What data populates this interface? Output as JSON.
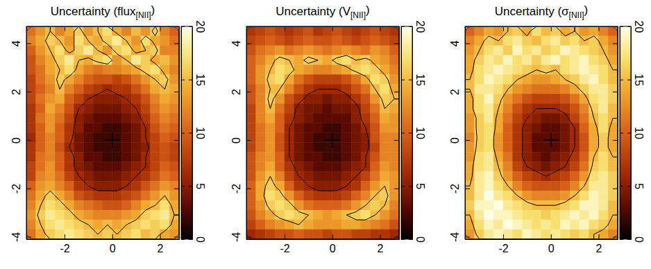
{
  "chart_data": [
    {
      "type": "heatmap",
      "title": {
        "text": "Uncertainty (flux",
        "subscript": "[NII]",
        "end": ")"
      },
      "xlim": [
        -3.6,
        2.8
      ],
      "ylim": [
        -4.1,
        4.7
      ],
      "xticks": [
        -2,
        0,
        2
      ],
      "yticks": [
        -4,
        -2,
        0,
        2,
        4
      ],
      "x": [
        -3.4,
        -3.0,
        -2.6,
        -2.2,
        -1.8,
        -1.4,
        -1.0,
        -0.6,
        -0.2,
        0.2,
        0.6,
        1.0,
        1.4,
        1.8,
        2.2,
        2.6
      ],
      "y": [
        4.5,
        4.1,
        3.7,
        3.3,
        2.9,
        2.5,
        2.1,
        1.7,
        1.3,
        0.9,
        0.5,
        0.1,
        -0.3,
        -0.7,
        -1.1,
        -1.5,
        -1.9,
        -2.3,
        -2.7,
        -3.1,
        -3.5,
        -3.9
      ],
      "values": [
        [
          11,
          13,
          15,
          12,
          14,
          16,
          13,
          15,
          17,
          14,
          12,
          15,
          13,
          16,
          12,
          10
        ],
        [
          12,
          14,
          16,
          15,
          13,
          17,
          15,
          14,
          16,
          18,
          15,
          13,
          17,
          14,
          13,
          11
        ],
        [
          10,
          13,
          15,
          17,
          14,
          16,
          18,
          15,
          13,
          16,
          17,
          14,
          15,
          16,
          12,
          12
        ],
        [
          9,
          12,
          14,
          16,
          18,
          15,
          14,
          16,
          17,
          13,
          15,
          18,
          16,
          14,
          15,
          13
        ],
        [
          9,
          11,
          14,
          15,
          17,
          14,
          12,
          11,
          12,
          12,
          13,
          14,
          16,
          17,
          14,
          12
        ],
        [
          8,
          11,
          13,
          16,
          14,
          12,
          10,
          9,
          9,
          8,
          9,
          11,
          13,
          15,
          16,
          13
        ],
        [
          8,
          10,
          12,
          15,
          12,
          10,
          8,
          7,
          6,
          7,
          7,
          9,
          11,
          14,
          15,
          14
        ],
        [
          8,
          11,
          13,
          14,
          10,
          8,
          6,
          5,
          5,
          5,
          6,
          7,
          9,
          12,
          14,
          13
        ],
        [
          7,
          10,
          14,
          12,
          9,
          6,
          5,
          4,
          4,
          4,
          5,
          6,
          8,
          11,
          13,
          12
        ],
        [
          7,
          11,
          13,
          11,
          8,
          5,
          4,
          3,
          3,
          3,
          4,
          5,
          7,
          10,
          12,
          11
        ],
        [
          7,
          10,
          13,
          10,
          7,
          5,
          3,
          3,
          2,
          2,
          3,
          4,
          6,
          9,
          11,
          10
        ],
        [
          6,
          10,
          12,
          10,
          7,
          4,
          3,
          2,
          2,
          2,
          3,
          4,
          6,
          8,
          10,
          9
        ],
        [
          7,
          10,
          12,
          9,
          6,
          4,
          3,
          2,
          2,
          2,
          3,
          4,
          5,
          8,
          9,
          8
        ],
        [
          7,
          11,
          12,
          10,
          7,
          5,
          3,
          3,
          2,
          2,
          3,
          4,
          6,
          8,
          9,
          8
        ],
        [
          8,
          11,
          13,
          10,
          7,
          5,
          4,
          3,
          3,
          3,
          4,
          5,
          6,
          8,
          10,
          9
        ],
        [
          8,
          12,
          13,
          11,
          8,
          6,
          5,
          4,
          4,
          4,
          5,
          6,
          7,
          9,
          11,
          10
        ],
        [
          10,
          13,
          14,
          12,
          10,
          7,
          6,
          5,
          5,
          5,
          6,
          7,
          9,
          11,
          13,
          12
        ],
        [
          11,
          14,
          16,
          14,
          12,
          9,
          8,
          7,
          7,
          7,
          8,
          9,
          11,
          13,
          15,
          13
        ],
        [
          12,
          15,
          17,
          16,
          14,
          12,
          11,
          10,
          9,
          9,
          10,
          12,
          14,
          15,
          17,
          14
        ],
        [
          13,
          16,
          18,
          17,
          16,
          14,
          13,
          12,
          12,
          12,
          13,
          14,
          16,
          17,
          18,
          15
        ],
        [
          12,
          15,
          17,
          18,
          17,
          16,
          15,
          14,
          15,
          14,
          15,
          16,
          17,
          16,
          17,
          14
        ],
        [
          11,
          14,
          16,
          17,
          18,
          17,
          16,
          15,
          16,
          15,
          16,
          17,
          15,
          16,
          14,
          13
        ]
      ],
      "colorbar": {
        "range": [
          0,
          20
        ],
        "ticks": [
          0,
          5,
          10,
          15,
          20
        ]
      },
      "contour_levels": [
        6,
        15
      ],
      "cross": [
        0,
        0
      ]
    },
    {
      "type": "heatmap",
      "title": {
        "text": "Uncertainty (V",
        "subscript": "[NII]",
        "end": ")"
      },
      "xlim": [
        -3.6,
        2.8
      ],
      "ylim": [
        -4.1,
        4.7
      ],
      "xticks": [
        -2,
        0,
        2
      ],
      "yticks": [
        -4,
        -2,
        0,
        2,
        4
      ],
      "x": [
        -3.4,
        -3.0,
        -2.6,
        -2.2,
        -1.8,
        -1.4,
        -1.0,
        -0.6,
        -0.2,
        0.2,
        0.6,
        1.0,
        1.4,
        1.8,
        2.2,
        2.6
      ],
      "y": [
        4.5,
        4.1,
        3.7,
        3.3,
        2.9,
        2.5,
        2.1,
        1.7,
        1.3,
        0.9,
        0.5,
        0.1,
        -0.3,
        -0.7,
        -1.1,
        -1.5,
        -1.9,
        -2.3,
        -2.7,
        -3.1,
        -3.5,
        -3.9
      ],
      "values": [
        [
          7,
          8,
          9,
          8,
          7,
          8,
          9,
          7,
          8,
          9,
          8,
          7,
          8,
          9,
          8,
          7
        ],
        [
          8,
          9,
          10,
          9,
          8,
          9,
          10,
          9,
          9,
          10,
          9,
          8,
          9,
          10,
          9,
          8
        ],
        [
          9,
          11,
          12,
          13,
          11,
          12,
          13,
          12,
          11,
          12,
          13,
          12,
          11,
          13,
          12,
          10
        ],
        [
          10,
          12,
          14,
          16,
          15,
          14,
          16,
          15,
          14,
          16,
          17,
          15,
          16,
          14,
          13,
          11
        ],
        [
          10,
          13,
          15,
          17,
          16,
          14,
          13,
          12,
          12,
          13,
          14,
          16,
          17,
          16,
          14,
          12
        ],
        [
          10,
          13,
          16,
          17,
          14,
          11,
          9,
          8,
          8,
          8,
          9,
          11,
          14,
          17,
          16,
          13
        ],
        [
          9,
          12,
          15,
          15,
          12,
          9,
          7,
          6,
          6,
          6,
          7,
          9,
          11,
          15,
          17,
          14
        ],
        [
          9,
          12,
          16,
          13,
          9,
          7,
          5,
          5,
          4,
          5,
          5,
          7,
          9,
          13,
          16,
          15
        ],
        [
          8,
          12,
          15,
          11,
          8,
          5,
          4,
          4,
          3,
          4,
          4,
          5,
          8,
          11,
          15,
          14
        ],
        [
          8,
          12,
          14,
          10,
          7,
          5,
          4,
          3,
          3,
          3,
          3,
          5,
          7,
          10,
          14,
          13
        ],
        [
          8,
          11,
          13,
          10,
          6,
          4,
          3,
          3,
          2,
          2,
          3,
          4,
          6,
          9,
          13,
          13
        ],
        [
          8,
          11,
          13,
          9,
          6,
          4,
          3,
          2,
          2,
          2,
          3,
          4,
          5,
          9,
          12,
          12
        ],
        [
          8,
          11,
          13,
          9,
          6,
          4,
          3,
          2,
          2,
          2,
          3,
          4,
          5,
          8,
          12,
          12
        ],
        [
          9,
          12,
          13,
          10,
          6,
          4,
          3,
          3,
          2,
          2,
          3,
          4,
          6,
          9,
          12,
          12
        ],
        [
          9,
          12,
          14,
          10,
          7,
          5,
          4,
          3,
          3,
          3,
          4,
          5,
          6,
          10,
          13,
          12
        ],
        [
          9,
          13,
          15,
          12,
          8,
          6,
          5,
          4,
          4,
          4,
          5,
          6,
          8,
          11,
          14,
          13
        ],
        [
          10,
          14,
          16,
          14,
          10,
          7,
          6,
          5,
          5,
          5,
          6,
          7,
          10,
          13,
          15,
          13
        ],
        [
          10,
          14,
          17,
          16,
          13,
          10,
          8,
          7,
          7,
          7,
          8,
          10,
          12,
          15,
          16,
          13
        ],
        [
          10,
          13,
          16,
          17,
          16,
          13,
          11,
          10,
          10,
          10,
          11,
          13,
          15,
          16,
          15,
          12
        ],
        [
          9,
          12,
          14,
          16,
          17,
          16,
          15,
          14,
          13,
          14,
          15,
          16,
          17,
          15,
          13,
          11
        ],
        [
          8,
          10,
          12,
          13,
          14,
          15,
          14,
          13,
          13,
          13,
          14,
          14,
          13,
          12,
          11,
          9
        ],
        [
          6,
          7,
          8,
          9,
          9,
          10,
          9,
          9,
          8,
          9,
          9,
          8,
          8,
          7,
          7,
          6
        ]
      ],
      "colorbar": {
        "range": [
          0,
          20
        ],
        "ticks": [
          0,
          5,
          10,
          15,
          20
        ]
      },
      "contour_levels": [
        6,
        15
      ],
      "cross": [
        0,
        0
      ]
    },
    {
      "type": "heatmap",
      "title": {
        "text": "Uncertainty (σ",
        "subscript": "[NII]",
        "end": ")"
      },
      "xlim": [
        -3.6,
        2.8
      ],
      "ylim": [
        -4.1,
        4.7
      ],
      "xticks": [
        -2,
        0,
        2
      ],
      "yticks": [
        -4,
        -2,
        0,
        2,
        4
      ],
      "x": [
        -3.4,
        -3.0,
        -2.6,
        -2.2,
        -1.8,
        -1.4,
        -1.0,
        -0.6,
        -0.2,
        0.2,
        0.6,
        1.0,
        1.4,
        1.8,
        2.2,
        2.6
      ],
      "y": [
        4.5,
        4.1,
        3.7,
        3.3,
        2.9,
        2.5,
        2.1,
        1.7,
        1.3,
        0.9,
        0.5,
        0.1,
        -0.3,
        -0.7,
        -1.1,
        -1.5,
        -1.9,
        -2.3,
        -2.7,
        -3.1,
        -3.5,
        -3.9
      ],
      "values": [
        [
          10,
          12,
          14,
          13,
          15,
          16,
          14,
          17,
          15,
          16,
          14,
          15,
          13,
          14,
          12,
          10
        ],
        [
          12,
          14,
          16,
          15,
          17,
          18,
          16,
          15,
          17,
          18,
          16,
          17,
          15,
          16,
          14,
          12
        ],
        [
          13,
          15,
          17,
          18,
          16,
          19,
          17,
          18,
          16,
          17,
          19,
          18,
          17,
          16,
          15,
          13
        ],
        [
          14,
          16,
          18,
          17,
          19,
          17,
          18,
          16,
          18,
          19,
          17,
          18,
          19,
          17,
          16,
          14
        ],
        [
          14,
          17,
          18,
          19,
          18,
          17,
          16,
          15,
          16,
          15,
          17,
          18,
          19,
          18,
          17,
          15
        ],
        [
          15,
          17,
          19,
          18,
          17,
          15,
          14,
          13,
          13,
          14,
          15,
          16,
          18,
          19,
          17,
          15
        ],
        [
          15,
          18,
          18,
          17,
          15,
          13,
          12,
          11,
          11,
          11,
          12,
          14,
          16,
          18,
          18,
          16
        ],
        [
          14,
          17,
          19,
          16,
          13,
          11,
          9,
          8,
          8,
          8,
          9,
          11,
          14,
          17,
          18,
          16
        ],
        [
          14,
          17,
          18,
          15,
          12,
          9,
          7,
          6,
          6,
          6,
          7,
          9,
          12,
          16,
          18,
          15
        ],
        [
          13,
          16,
          18,
          14,
          11,
          8,
          6,
          5,
          4,
          4,
          5,
          8,
          11,
          15,
          17,
          15
        ],
        [
          13,
          16,
          17,
          14,
          10,
          7,
          5,
          4,
          3,
          3,
          4,
          6,
          10,
          14,
          17,
          14
        ],
        [
          12,
          16,
          17,
          13,
          10,
          7,
          5,
          3,
          3,
          3,
          4,
          6,
          9,
          14,
          16,
          14
        ],
        [
          13,
          16,
          17,
          13,
          10,
          7,
          5,
          3,
          3,
          3,
          4,
          6,
          9,
          14,
          16,
          14
        ],
        [
          13,
          17,
          18,
          14,
          11,
          7,
          5,
          4,
          3,
          4,
          5,
          7,
          10,
          15,
          17,
          15
        ],
        [
          14,
          17,
          18,
          15,
          12,
          8,
          6,
          5,
          4,
          5,
          6,
          8,
          11,
          16,
          17,
          15
        ],
        [
          14,
          18,
          19,
          16,
          13,
          10,
          8,
          7,
          6,
          7,
          8,
          10,
          13,
          17,
          18,
          16
        ],
        [
          15,
          18,
          19,
          17,
          15,
          12,
          10,
          9,
          9,
          9,
          10,
          12,
          15,
          18,
          18,
          16
        ],
        [
          15,
          18,
          20,
          18,
          17,
          15,
          13,
          12,
          12,
          12,
          13,
          15,
          17,
          19,
          18,
          16
        ],
        [
          16,
          19,
          19,
          20,
          18,
          17,
          16,
          15,
          15,
          15,
          16,
          17,
          19,
          19,
          18,
          15
        ],
        [
          15,
          18,
          20,
          19,
          19,
          18,
          17,
          17,
          16,
          17,
          18,
          19,
          18,
          19,
          17,
          15
        ],
        [
          14,
          17,
          19,
          18,
          20,
          19,
          18,
          17,
          18,
          17,
          19,
          18,
          19,
          17,
          16,
          14
        ],
        [
          13,
          16,
          18,
          19,
          18,
          17,
          19,
          18,
          17,
          18,
          17,
          16,
          17,
          15,
          14,
          12
        ]
      ],
      "colorbar": {
        "range": [
          0,
          20
        ],
        "ticks": [
          0,
          5,
          10,
          15,
          20
        ]
      },
      "contour_levels": [
        6,
        15
      ],
      "cross": [
        0,
        0
      ]
    }
  ]
}
